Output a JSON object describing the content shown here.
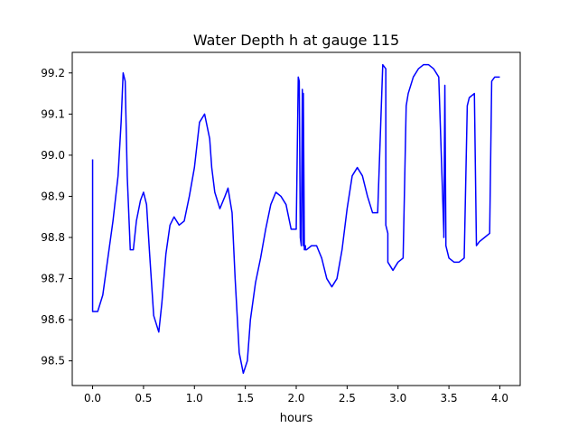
{
  "chart_data": {
    "type": "line",
    "title": "Water Depth h at gauge 115",
    "xlabel": "hours",
    "ylabel": "",
    "xlim": [
      -0.2,
      4.2
    ],
    "ylim": [
      98.44,
      99.25
    ],
    "xticks": [
      0.0,
      0.5,
      1.0,
      1.5,
      2.0,
      2.5,
      3.0,
      3.5,
      4.0
    ],
    "xtick_labels": [
      "0.0",
      "0.5",
      "1.0",
      "1.5",
      "2.0",
      "2.5",
      "3.0",
      "3.5",
      "4.0"
    ],
    "yticks": [
      98.5,
      98.6,
      98.7,
      98.8,
      98.9,
      99.0,
      99.1,
      99.2
    ],
    "ytick_labels": [
      "98.5",
      "98.6",
      "98.7",
      "98.8",
      "98.9",
      "99.0",
      "99.1",
      "99.2"
    ],
    "grid": false,
    "series": [
      {
        "name": "",
        "color": "#0000ff",
        "x": [
          0.0,
          0.0,
          0.0,
          0.05,
          0.1,
          0.15,
          0.2,
          0.25,
          0.28,
          0.3,
          0.32,
          0.34,
          0.37,
          0.4,
          0.43,
          0.47,
          0.5,
          0.53,
          0.56,
          0.6,
          0.65,
          0.68,
          0.72,
          0.76,
          0.8,
          0.85,
          0.9,
          0.95,
          1.0,
          1.05,
          1.1,
          1.15,
          1.17,
          1.2,
          1.25,
          1.3,
          1.33,
          1.37,
          1.4,
          1.44,
          1.48,
          1.52,
          1.55,
          1.6,
          1.65,
          1.7,
          1.75,
          1.8,
          1.85,
          1.9,
          1.95,
          2.0,
          2.02,
          2.03,
          2.04,
          2.05,
          2.06,
          2.07,
          2.07,
          2.08,
          2.08,
          2.09,
          2.09,
          2.1,
          2.15,
          2.2,
          2.25,
          2.3,
          2.35,
          2.4,
          2.45,
          2.5,
          2.55,
          2.6,
          2.65,
          2.7,
          2.75,
          2.8,
          2.85,
          2.88,
          2.88,
          2.9,
          2.9,
          2.95,
          3.0,
          3.05,
          3.08,
          3.08,
          3.1,
          3.15,
          3.2,
          3.25,
          3.3,
          3.35,
          3.4,
          3.45,
          3.45,
          3.46,
          3.47,
          3.47,
          3.5,
          3.55,
          3.6,
          3.65,
          3.68,
          3.68,
          3.7,
          3.75,
          3.77,
          3.77,
          3.8,
          3.85,
          3.9,
          3.92,
          3.92,
          3.95,
          4.0
        ],
        "y": [
          98.99,
          98.62,
          98.62,
          98.62,
          98.66,
          98.75,
          98.84,
          98.95,
          99.08,
          99.2,
          99.18,
          98.95,
          98.77,
          98.77,
          98.84,
          98.89,
          98.91,
          98.88,
          98.76,
          98.61,
          98.57,
          98.64,
          98.76,
          98.83,
          98.85,
          98.83,
          98.84,
          98.9,
          98.97,
          99.08,
          99.1,
          99.04,
          98.97,
          98.91,
          98.87,
          98.9,
          98.92,
          98.86,
          98.7,
          98.52,
          98.47,
          98.5,
          98.6,
          98.69,
          98.75,
          98.82,
          98.88,
          98.91,
          98.9,
          98.88,
          98.82,
          98.82,
          99.19,
          99.18,
          98.8,
          98.78,
          99.16,
          98.78,
          99.15,
          98.77,
          98.78,
          98.78,
          98.77,
          98.77,
          98.78,
          98.78,
          98.75,
          98.7,
          98.68,
          98.7,
          98.77,
          98.87,
          98.95,
          98.97,
          98.95,
          98.9,
          98.86,
          98.86,
          99.22,
          99.21,
          98.83,
          98.81,
          98.74,
          98.72,
          98.74,
          98.75,
          99.12,
          99.12,
          99.15,
          99.19,
          99.21,
          99.22,
          99.22,
          99.21,
          99.19,
          98.81,
          98.8,
          99.17,
          98.8,
          98.78,
          98.75,
          98.74,
          98.74,
          98.75,
          99.12,
          99.12,
          99.14,
          99.15,
          98.78,
          98.78,
          98.79,
          98.8,
          98.81,
          99.18,
          99.18,
          99.19,
          99.19
        ]
      }
    ]
  }
}
